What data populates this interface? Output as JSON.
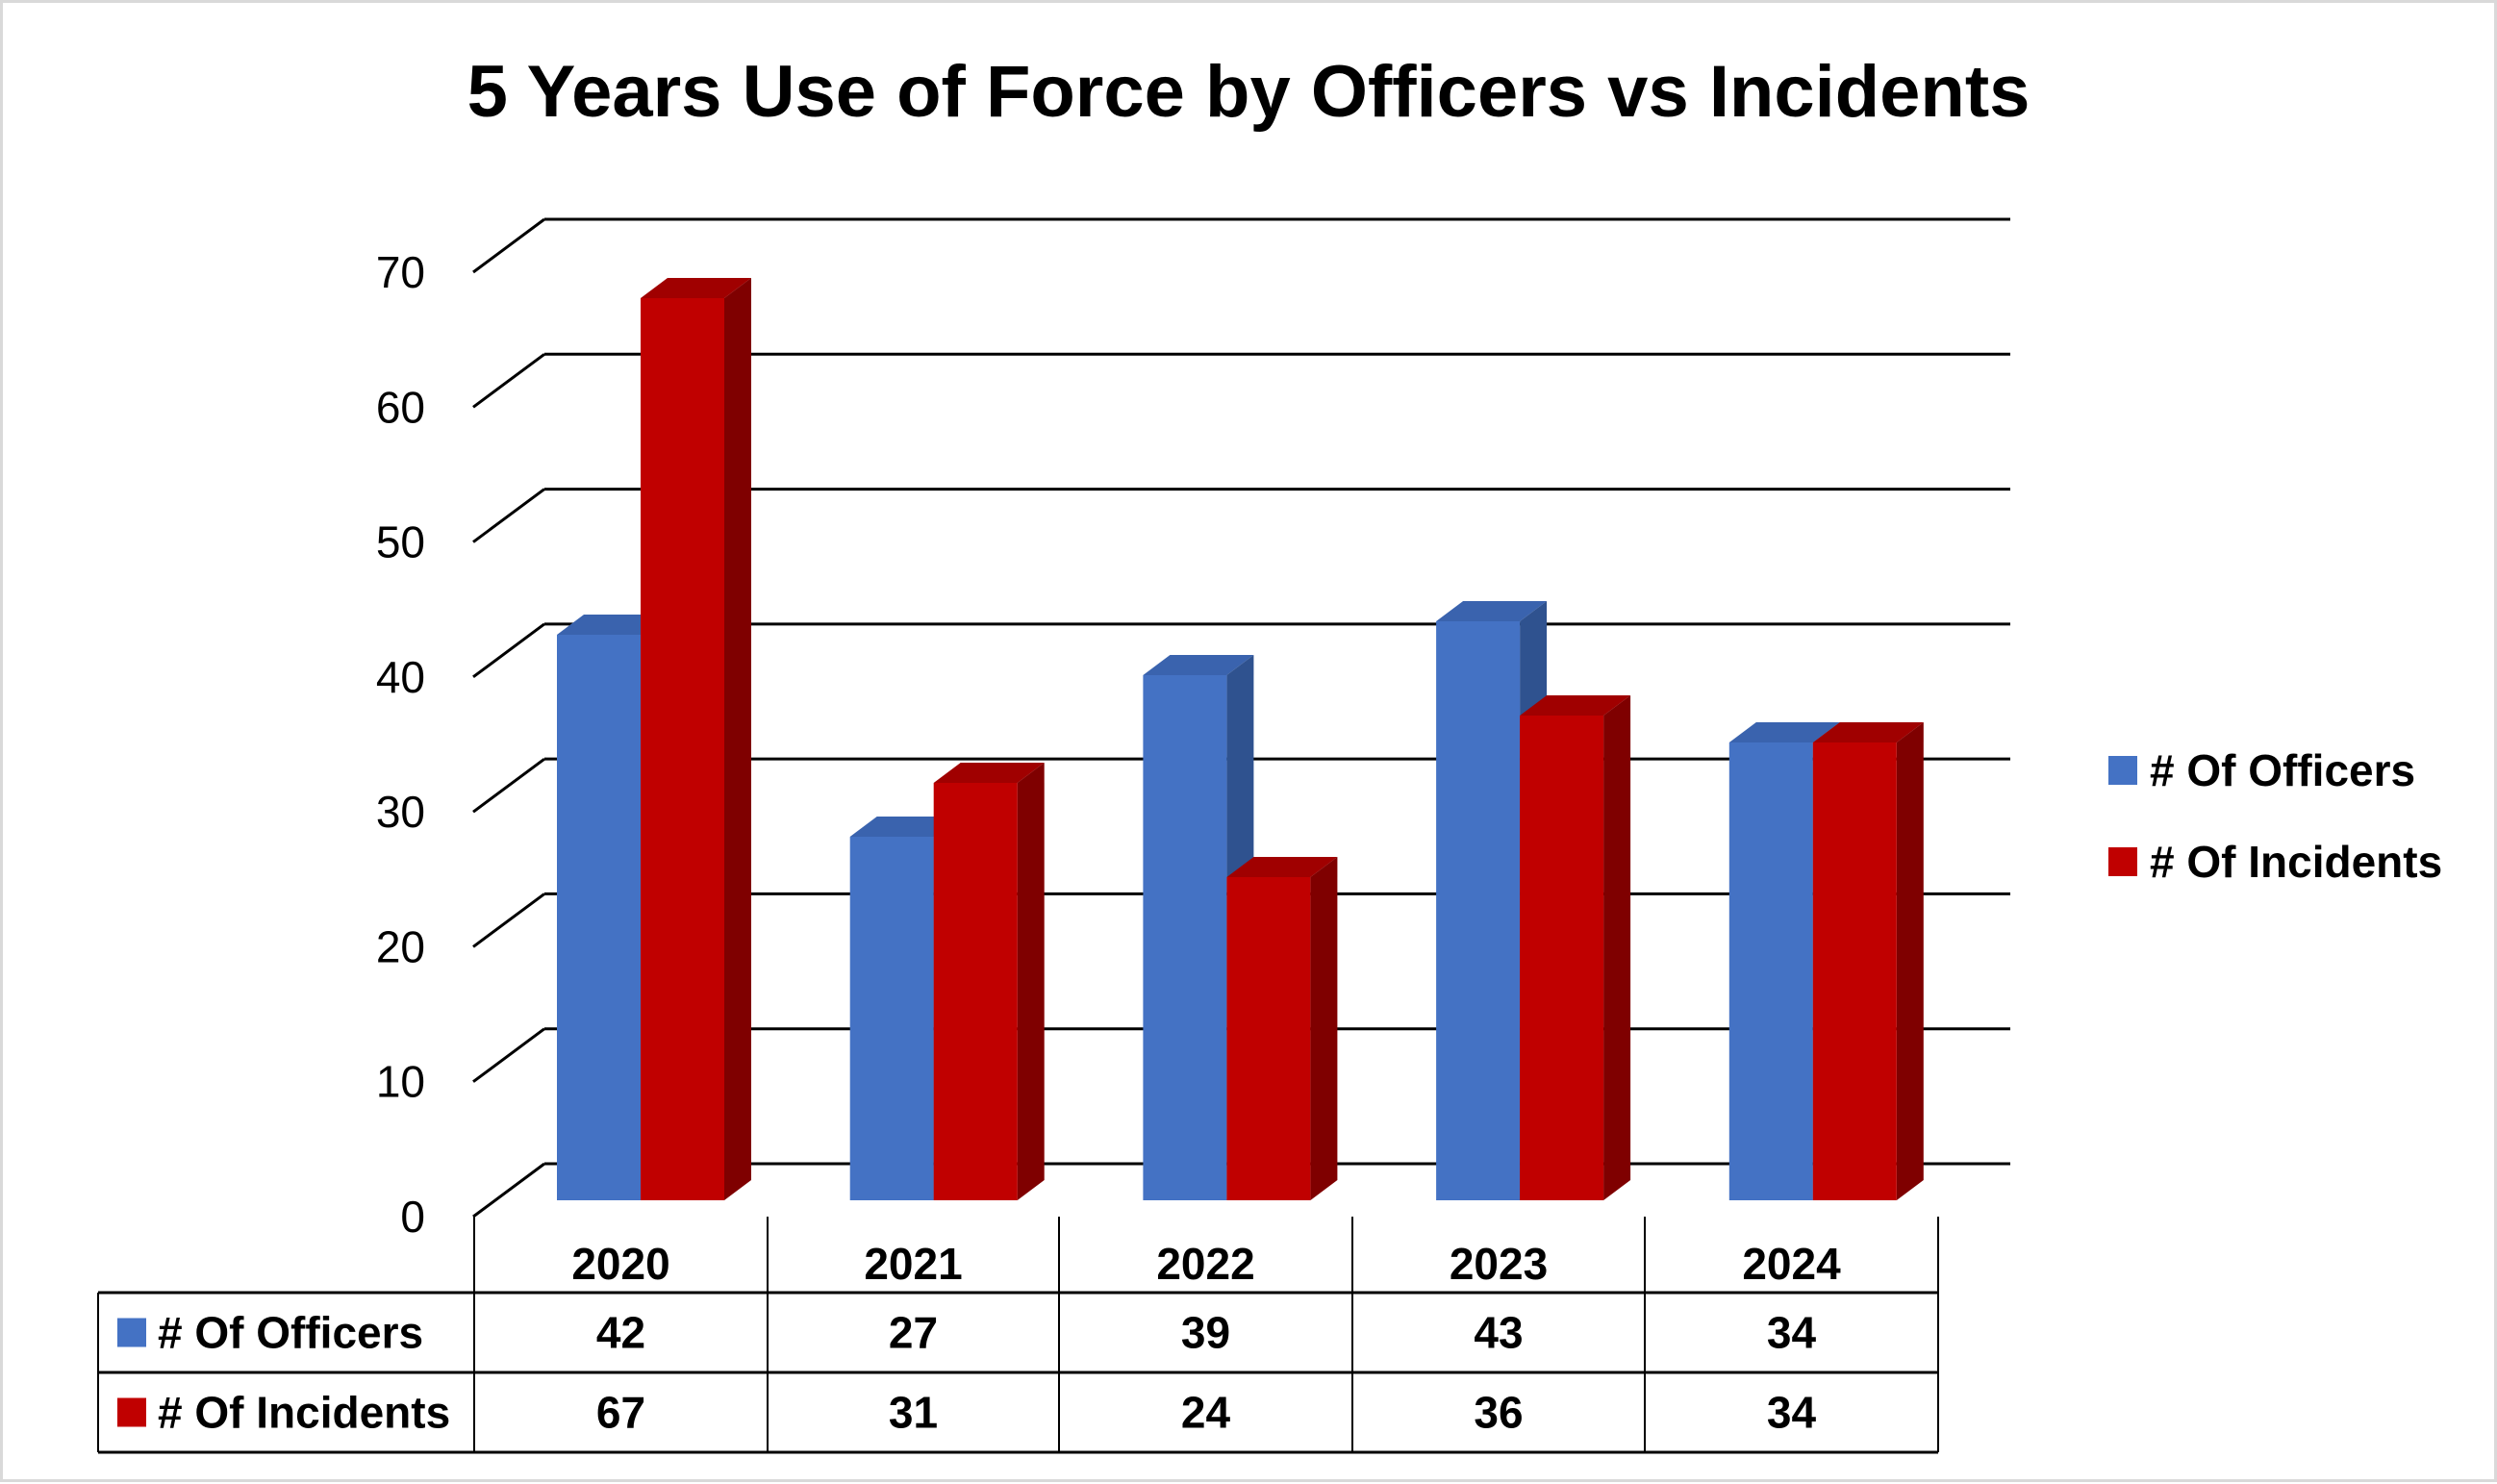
{
  "chart_data": {
    "type": "bar",
    "title": "5 Years Use of Force by Officers vs Incidents",
    "categories": [
      "2020",
      "2021",
      "2022",
      "2023",
      "2024"
    ],
    "series": [
      {
        "name": "# Of Officers",
        "values": [
          42,
          27,
          39,
          43,
          34
        ],
        "color": "#4472C4",
        "side_color": "#2F528F",
        "top_color": "#3A63AE"
      },
      {
        "name": "# Of Incidents",
        "values": [
          67,
          31,
          24,
          36,
          34
        ],
        "color": "#C00000",
        "side_color": "#7F0000",
        "top_color": "#A00000"
      }
    ],
    "ylim": [
      0,
      70
    ],
    "yticks": [
      0,
      10,
      20,
      30,
      40,
      50,
      60,
      70
    ],
    "grid": true,
    "style": "3d-clustered-column",
    "legend_position": "right",
    "data_table": true
  }
}
